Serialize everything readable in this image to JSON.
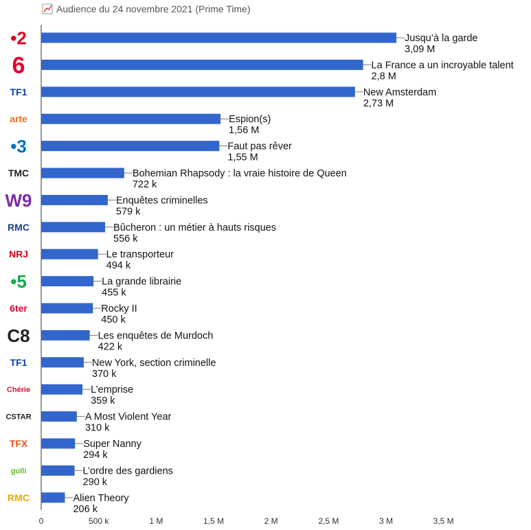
{
  "chart_data": {
    "type": "bar",
    "orientation": "horizontal",
    "title": "Audience du 24 novembre 2021 (Prime Time)",
    "xlim": [
      0,
      3500000
    ],
    "x_ticks": [
      {
        "value": 0,
        "label": "0"
      },
      {
        "value": 500000,
        "label": "500 k"
      },
      {
        "value": 1000000,
        "label": "1 M"
      },
      {
        "value": 1500000,
        "label": "1,5 M"
      },
      {
        "value": 2000000,
        "label": "2 M"
      },
      {
        "value": 2500000,
        "label": "2,5 M"
      },
      {
        "value": 3000000,
        "label": "3 M"
      },
      {
        "value": 3500000,
        "label": "3,5 M"
      }
    ],
    "bar_color": "#3366cc",
    "rows": [
      {
        "channel": "France 2",
        "logo": "•2",
        "logo_color": "#e2001a",
        "program": "Jusqu’à la garde",
        "value": 3090000,
        "label": "3,09 M"
      },
      {
        "channel": "M6",
        "logo": "6",
        "logo_color": "#e4002b",
        "program": "La France a un incroyable talent",
        "value": 2800000,
        "label": "2,8 M"
      },
      {
        "channel": "TF1",
        "logo": "TF1",
        "logo_color": "#0a3cb4",
        "program": "New Amsterdam",
        "value": 2730000,
        "label": "2,73 M"
      },
      {
        "channel": "Arte",
        "logo": "arte",
        "logo_color": "#f26a21",
        "program": "Espion(s)",
        "value": 1560000,
        "label": "1,56 M"
      },
      {
        "channel": "France 3",
        "logo": "•3",
        "logo_color": "#0073c7",
        "program": "Faut pas rêver",
        "value": 1550000,
        "label": "1,55 M"
      },
      {
        "channel": "TMC",
        "logo": "TMC",
        "logo_color": "#222222",
        "program": "Bohemian Rhapsody : la vraie histoire de Queen",
        "value": 722000,
        "label": "722 k"
      },
      {
        "channel": "W9",
        "logo": "W9",
        "logo_color": "#7b2ea8",
        "program": "Enquêtes criminelles",
        "value": 579000,
        "label": "579 k"
      },
      {
        "channel": "RMC Découverte",
        "logo": "RMC",
        "logo_color": "#1d3f8f",
        "program": "Bûcheron : un métier à hauts risques",
        "value": 556000,
        "label": "556 k"
      },
      {
        "channel": "NRJ 12",
        "logo": "NRJ",
        "logo_color": "#e10014",
        "program": "Le transporteur",
        "value": 494000,
        "label": "494 k"
      },
      {
        "channel": "France 5",
        "logo": "•5",
        "logo_color": "#17a84a",
        "program": "La grande librairie",
        "value": 455000,
        "label": "455 k"
      },
      {
        "channel": "6ter",
        "logo": "6ter",
        "logo_color": "#e4002b",
        "program": "Rocky II",
        "value": 450000,
        "label": "450 k"
      },
      {
        "channel": "C8",
        "logo": "C8",
        "logo_color": "#222222",
        "program": "Les enquêtes de Murdoch",
        "value": 422000,
        "label": "422 k"
      },
      {
        "channel": "TF1 Séries Films",
        "logo": "TF1",
        "logo_color": "#0a3cb4",
        "program": "New York, section criminelle",
        "value": 370000,
        "label": "370 k"
      },
      {
        "channel": "Chérie 25",
        "logo": "Chérie",
        "logo_color": "#d8192f",
        "program": "L’emprise",
        "value": 359000,
        "label": "359 k"
      },
      {
        "channel": "CStar",
        "logo": "CSTAR",
        "logo_color": "#222222",
        "program": "A Most Violent Year",
        "value": 310000,
        "label": "310 k"
      },
      {
        "channel": "TFX",
        "logo": "TFX",
        "logo_color": "#e8501a",
        "program": "Super Nanny",
        "value": 294000,
        "label": "294 k"
      },
      {
        "channel": "Gulli",
        "logo": "gulli",
        "logo_color": "#6cb52d",
        "program": "L’ordre des gardiens",
        "value": 290000,
        "label": "290 k"
      },
      {
        "channel": "RMC Story",
        "logo": "RMC",
        "logo_color": "#f0a500",
        "program": "Alien Theory",
        "value": 206000,
        "label": "206 k"
      }
    ]
  }
}
